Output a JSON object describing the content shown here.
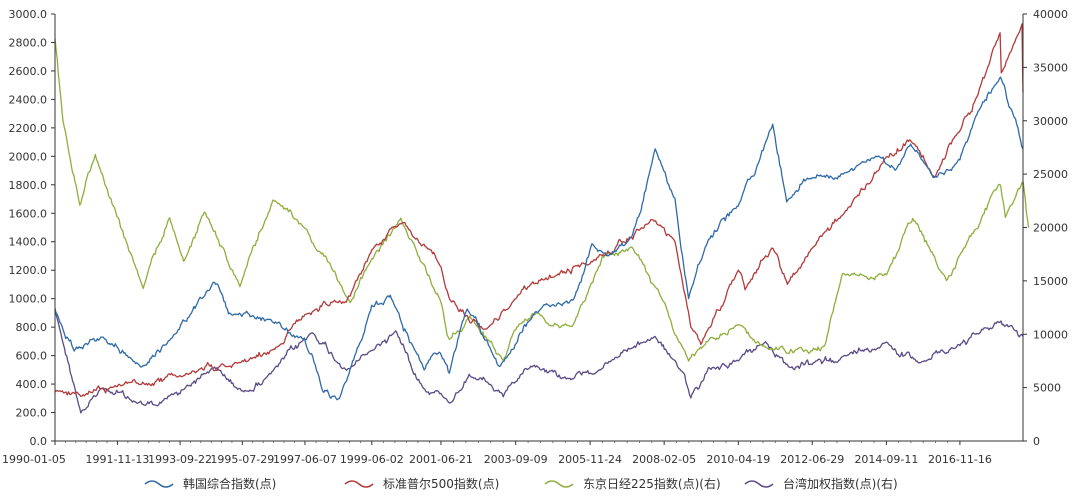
{
  "chart_data": {
    "type": "line",
    "title": "",
    "xlabel": "",
    "ylabel": "",
    "y2label": "",
    "xlim": [
      "1990-01-05",
      "2018-10-01"
    ],
    "ylim": [
      0,
      3000
    ],
    "y2lim": [
      0,
      40000
    ],
    "y_ticks": [
      "0.0",
      "200.0",
      "400.0",
      "600.0",
      "800.0",
      "1000.0",
      "1200.0",
      "1400.0",
      "1600.0",
      "1800.0",
      "2000.0",
      "2200.0",
      "2400.0",
      "2600.0",
      "2800.0",
      "3000.0"
    ],
    "y2_ticks": [
      "0",
      "5000",
      "10000",
      "15000",
      "20000",
      "25000",
      "30000",
      "35000",
      "40000"
    ],
    "x_ticks": [
      "1990-01-05",
      "1991-11-13",
      "1993-09-22",
      "1995-07-29",
      "1997-06-07",
      "1999-06-02",
      "2001-06-21",
      "2003-09-09",
      "2005-11-24",
      "2008-02-05",
      "2010-04-19",
      "2012-06-29",
      "2014-09-11",
      "2016-11-16"
    ],
    "grid": false,
    "legend_position": "bottom",
    "colors": {
      "korea": "#2e6aa8",
      "sp500": "#b33a3a",
      "nikkei": "#8fae3c",
      "taiwan": "#5a4b86"
    },
    "series": [
      {
        "name": "韩国综合指数(点)",
        "key": "korea",
        "axis": "left",
        "x": [
          "1990-01-05",
          "1990-08-01",
          "1991-06-01",
          "1992-08-01",
          "1993-06-01",
          "1994-10-01",
          "1995-03-01",
          "1996-06-01",
          "1997-06-01",
          "1997-12-15",
          "1998-06-15",
          "1999-06-01",
          "1999-12-20",
          "2000-12-20",
          "2001-06-01",
          "2001-09-20",
          "2002-04-01",
          "2003-03-15",
          "2004-04-01",
          "2005-06-01",
          "2005-12-15",
          "2006-06-15",
          "2007-03-01",
          "2007-10-31",
          "2008-06-01",
          "2008-10-27",
          "2009-06-01",
          "2010-04-19",
          "2011-04-27",
          "2011-09-26",
          "2012-06-29",
          "2013-06-01",
          "2014-06-01",
          "2014-12-15",
          "2015-06-01",
          "2016-02-12",
          "2016-11-16",
          "2017-06-01",
          "2018-01-29",
          "2018-06-01",
          "2018-10-01"
        ],
        "values": [
          920,
          640,
          730,
          520,
          700,
          1120,
          900,
          850,
          720,
          350,
          290,
          950,
          1020,
          500,
          620,
          470,
          930,
          520,
          900,
          1000,
          1380,
          1300,
          1450,
          2050,
          1700,
          1000,
          1420,
          1650,
          2220,
          1680,
          1850,
          1880,
          2000,
          1900,
          2080,
          1850,
          1980,
          2320,
          2560,
          2320,
          2050
        ]
      },
      {
        "name": "标准普尔500指数(点)",
        "key": "sp500",
        "axis": "left",
        "x": [
          "1990-01-05",
          "1990-10-11",
          "1991-11-13",
          "1993-09-22",
          "1995-07-29",
          "1996-07-15",
          "1997-06-07",
          "1998-08-31",
          "1999-06-02",
          "2000-03-24",
          "2000-10-01",
          "2001-06-21",
          "2001-09-21",
          "2002-10-09",
          "2003-09-09",
          "2004-06-01",
          "2005-11-24",
          "2007-10-09",
          "2008-06-01",
          "2008-11-20",
          "2009-03-09",
          "2010-04-19",
          "2010-07-01",
          "2011-04-29",
          "2011-10-03",
          "2012-06-29",
          "2013-06-01",
          "2014-09-11",
          "2015-05-21",
          "2016-02-11",
          "2016-11-16",
          "2017-06-01",
          "2018-01-26",
          "2018-02-08",
          "2018-09-20",
          "2018-10-01"
        ],
        "values": [
          350,
          320,
          390,
          460,
          560,
          650,
          890,
          980,
          1340,
          1520,
          1420,
          1220,
          1000,
          780,
          1000,
          1130,
          1250,
          1560,
          1400,
          800,
          680,
          1200,
          1060,
          1360,
          1100,
          1360,
          1600,
          1990,
          2120,
          1850,
          2180,
          2440,
          2870,
          2580,
          2930,
          2450
        ]
      },
      {
        "name": "东京日经225指数(点)(右)",
        "key": "nikkei",
        "axis": "right",
        "x": [
          "1990-01-05",
          "1990-04-01",
          "1990-10-01",
          "1991-03-18",
          "1992-08-18",
          "1993-06-01",
          "1993-11-01",
          "1994-06-13",
          "1995-07-03",
          "1996-06-26",
          "1997-06-07",
          "1998-10-09",
          "1999-06-02",
          "2000-04-12",
          "2001-06-21",
          "2001-09-20",
          "2002-05-01",
          "2003-04-28",
          "2003-09-09",
          "2004-04-26",
          "2005-05-17",
          "2005-11-24",
          "2006-04-07",
          "2007-02-26",
          "2008-02-05",
          "2008-10-27",
          "2009-06-01",
          "2010-04-19",
          "2011-03-15",
          "2012-06-04",
          "2012-11-14",
          "2013-05-22",
          "2014-09-11",
          "2015-06-24",
          "2016-06-24",
          "2016-11-16",
          "2017-06-01",
          "2018-01-23",
          "2018-03-23",
          "2018-10-02",
          "2018-12-01"
        ],
        "values": [
          37800,
          30000,
          22000,
          26800,
          14300,
          21000,
          16800,
          21500,
          14500,
          22600,
          20000,
          13000,
          17000,
          20800,
          13000,
          9500,
          11700,
          7600,
          10500,
          12000,
          10800,
          14500,
          17300,
          18200,
          13000,
          7500,
          9500,
          11000,
          8600,
          8300,
          9000,
          15600,
          15600,
          20800,
          15000,
          17500,
          20000,
          24100,
          21000,
          24300,
          20000
        ]
      },
      {
        "name": "台湾加权指数(点)(右)",
        "key": "taiwan",
        "axis": "right",
        "x": [
          "1990-01-05",
          "1990-10-12",
          "1991-06-01",
          "1992-06-01",
          "1993-01-07",
          "1994-10-01",
          "1995-08-01",
          "1996-06-01",
          "1997-08-26",
          "1998-09-01",
          "1999-06-02",
          "2000-02-17",
          "2000-12-27",
          "2001-06-21",
          "2001-09-26",
          "2002-04-22",
          "2003-04-28",
          "2003-09-09",
          "2004-03-04",
          "2005-05-01",
          "2005-11-24",
          "2006-05-08",
          "2007-10-29",
          "2008-06-01",
          "2008-11-20",
          "2009-06-01",
          "2010-04-19",
          "2011-02-08",
          "2011-12-19",
          "2012-06-29",
          "2013-06-01",
          "2014-09-11",
          "2015-08-24",
          "2016-11-16",
          "2017-06-01",
          "2018-01-23",
          "2018-06-01",
          "2018-10-01"
        ],
        "values": [
          12400,
          2700,
          5000,
          3600,
          3300,
          6900,
          4600,
          6300,
          10200,
          6600,
          8500,
          10300,
          4800,
          4500,
          3600,
          6300,
          4200,
          5600,
          7000,
          5800,
          6300,
          7300,
          9800,
          7500,
          4100,
          6800,
          7600,
          9200,
          6700,
          7200,
          7900,
          9300,
          7400,
          9000,
          10000,
          11200,
          10800,
          9800
        ]
      }
    ]
  }
}
